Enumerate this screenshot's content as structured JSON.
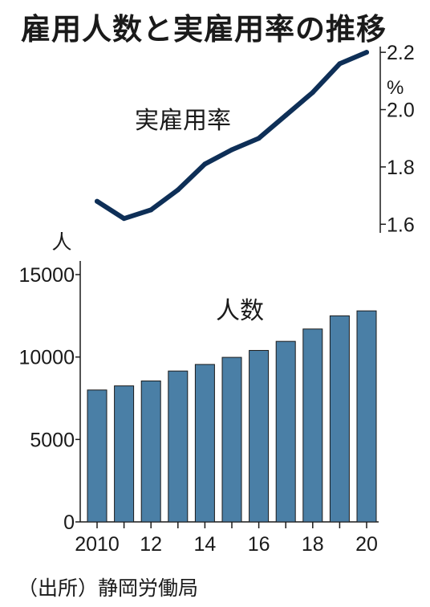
{
  "title": "雇用人数と実雇用率の推移",
  "source": "（出所）静岡労働局",
  "colors": {
    "line": "#0e2f57",
    "bar": "#4a7fa6",
    "bar_edge": "#1a1a1a",
    "axis": "#1a1a1a"
  },
  "chart_data": [
    {
      "type": "line",
      "label": "実雇用率",
      "yunit": "%",
      "ylim": [
        1.57,
        2.22
      ],
      "yticks": [
        1.6,
        1.8,
        2.0,
        2.2
      ],
      "ytick_labels": [
        "1.6",
        "1.8",
        "2.0",
        "2.2"
      ],
      "x": [
        2010,
        2011,
        2012,
        2013,
        2014,
        2015,
        2016,
        2017,
        2018,
        2019,
        2020
      ],
      "values": [
        1.68,
        1.62,
        1.65,
        1.72,
        1.81,
        1.86,
        1.9,
        1.98,
        2.06,
        2.16,
        2.2
      ]
    },
    {
      "type": "bar",
      "label": "人数",
      "yunit": "人",
      "ylim": [
        0,
        15000
      ],
      "yticks": [
        0,
        5000,
        10000,
        15000
      ],
      "ytick_labels": [
        "0",
        "5000",
        "10000",
        "15000"
      ],
      "categories": [
        "2010",
        "2011",
        "2012",
        "2013",
        "2014",
        "2015",
        "2016",
        "2017",
        "2018",
        "2019",
        "2020"
      ],
      "xtick_labels": [
        "2010",
        "",
        "12",
        "",
        "14",
        "",
        "16",
        "",
        "18",
        "",
        "20"
      ],
      "values": [
        8000,
        8250,
        8550,
        9150,
        9550,
        9980,
        10400,
        10950,
        11700,
        12500,
        12800
      ]
    }
  ]
}
